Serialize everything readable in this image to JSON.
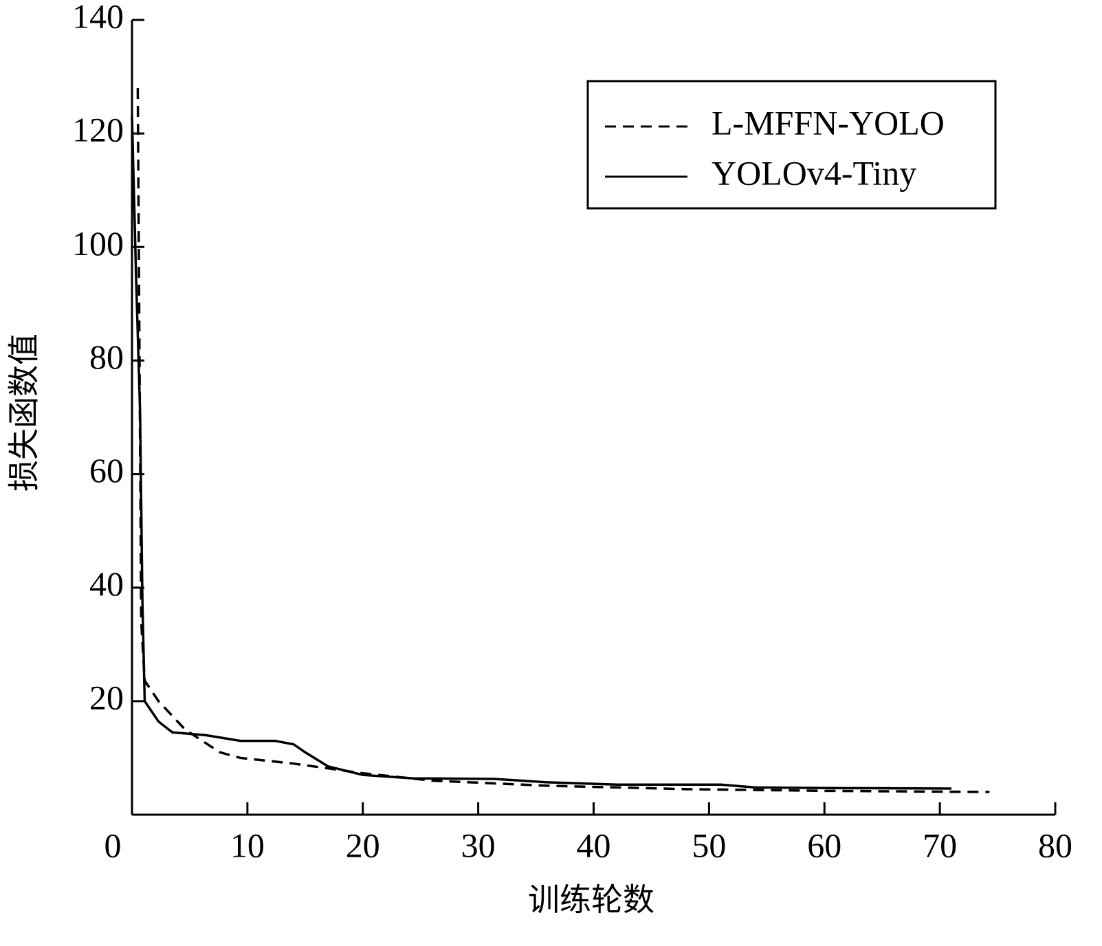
{
  "chart_data": {
    "type": "line",
    "xlabel": "训练轮数",
    "ylabel": "损失函数值",
    "xlim": [
      0,
      80
    ],
    "xticks": [
      0,
      10,
      20,
      30,
      40,
      50,
      60,
      70,
      80
    ],
    "ylim": [
      0,
      140
    ],
    "yticks": [
      20,
      40,
      60,
      80,
      100,
      120,
      140
    ],
    "legend": "upper right",
    "series": [
      {
        "name": "L-MFFN-YOLO",
        "color": "#000000",
        "dash": true,
        "x": [
          0.5,
          0.8,
          1.1,
          2.3,
          4.6,
          7.6,
          9.4,
          14,
          20,
          26,
          36,
          48,
          60,
          74.3
        ],
        "values": [
          128,
          34,
          23.6,
          20,
          15,
          11,
          10,
          9,
          7.3,
          6,
          5.1,
          4.5,
          4.2,
          4
        ]
      },
      {
        "name": "YOLOv4-Tiny",
        "color": "#000000",
        "dash": false,
        "x": [
          0,
          0.35,
          0.7,
          0.9,
          1.1,
          2.3,
          3.5,
          6.4,
          9.4,
          12.4,
          14,
          15,
          17,
          20,
          24.3,
          31.4,
          36,
          42,
          51,
          54,
          60,
          71
        ],
        "values": [
          123,
          95,
          71,
          38,
          20,
          16.4,
          14.5,
          14,
          13,
          13,
          12.4,
          11,
          8.5,
          7,
          6.4,
          6.3,
          5.7,
          5.3,
          5.3,
          4.8,
          4.7,
          4.6
        ]
      }
    ]
  }
}
